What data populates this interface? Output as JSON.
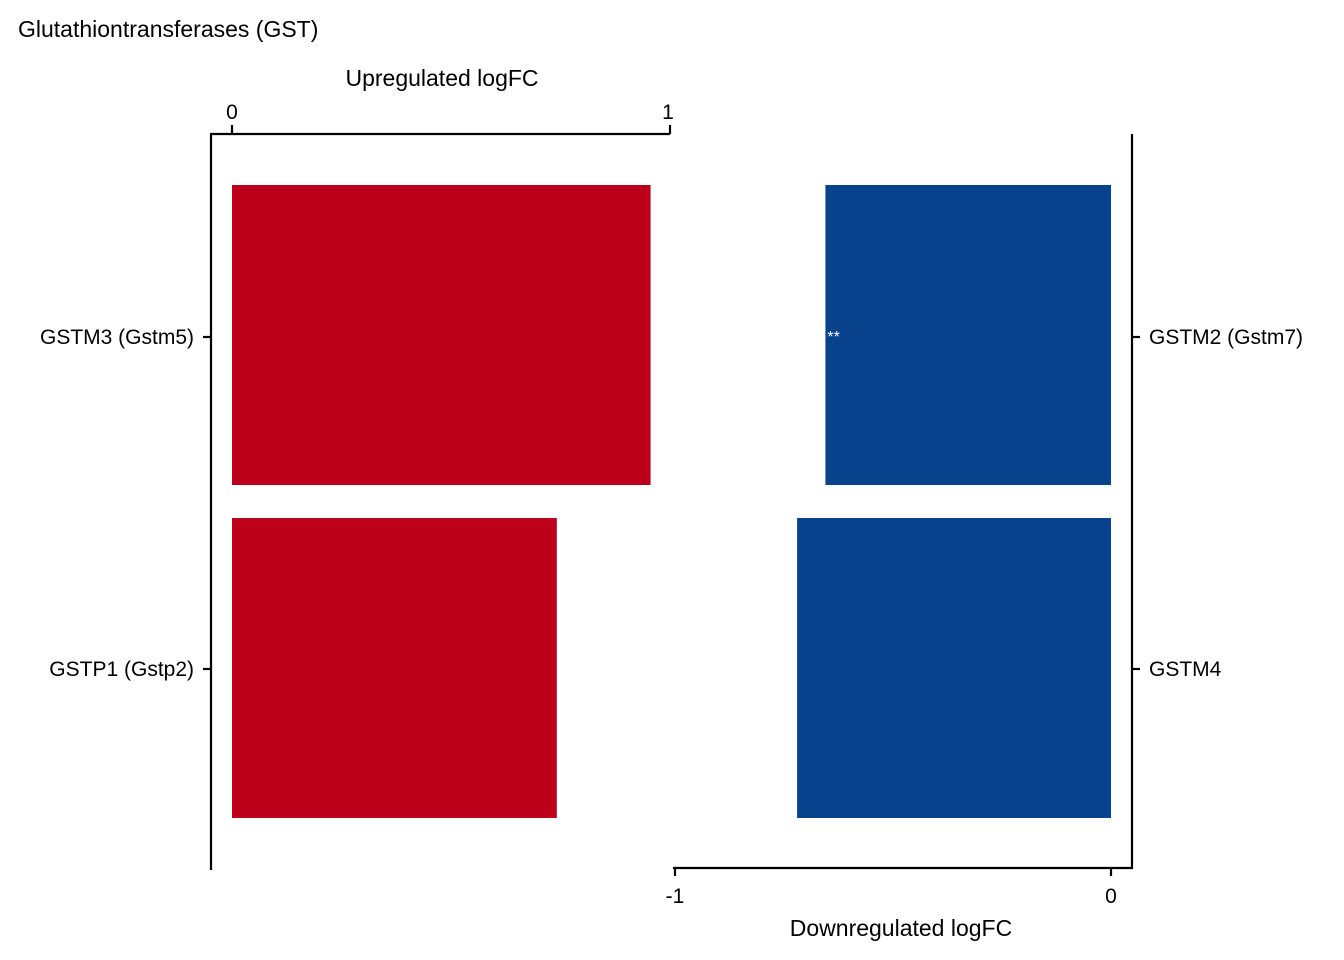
{
  "chart_data": {
    "type": "bar",
    "title": "Glutathiontransferases (GST)",
    "colors": {
      "upregulated": "#BD0019",
      "downregulated": "#08418C"
    },
    "upregulated": {
      "axis_label": "Upregulated logFC",
      "xlim": [
        0,
        1
      ],
      "ticks": [
        "0",
        "1"
      ],
      "categories": [
        "GSTM3 (Gstm5)",
        "GSTP1 (Gstp2)"
      ],
      "values": [
        0.96,
        0.745
      ]
    },
    "downregulated": {
      "axis_label": "Downregulated logFC",
      "xlim": [
        -1,
        0
      ],
      "ticks": [
        "-1",
        "0"
      ],
      "categories": [
        "GSTM2 (Gstm7)",
        "GSTM4"
      ],
      "values": [
        -0.655,
        -0.72
      ],
      "annotations": [
        "**",
        ""
      ]
    }
  }
}
